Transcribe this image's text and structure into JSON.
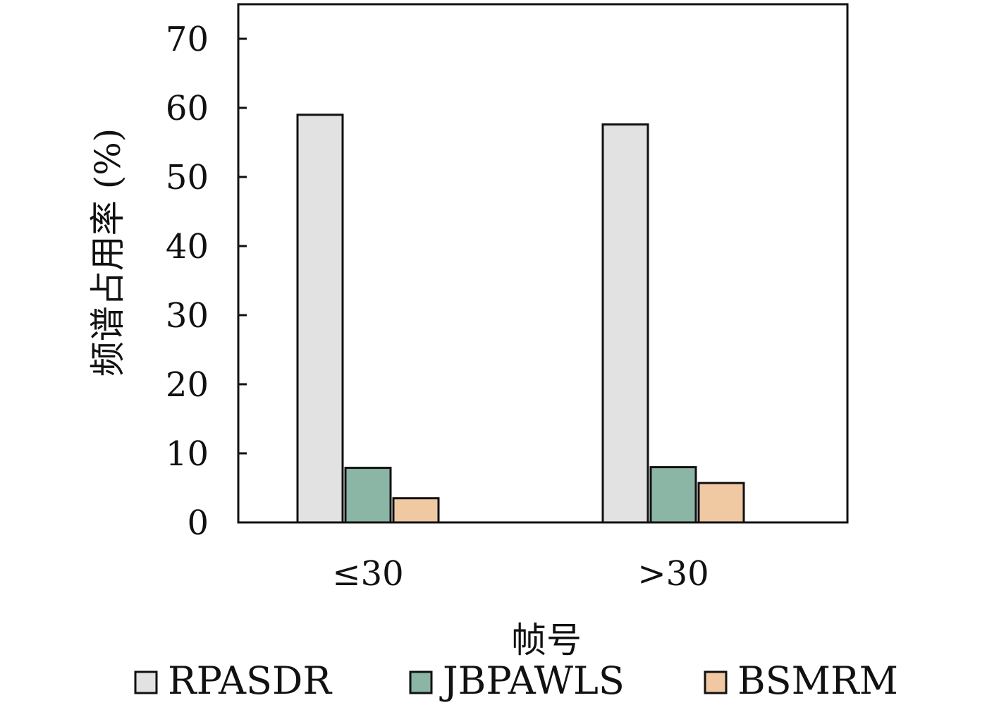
{
  "chart_data": {
    "type": "bar",
    "categories": [
      "≤30",
      ">30"
    ],
    "series": [
      {
        "name": "RPASDR",
        "color": "#e2e2e2",
        "values": [
          59.0,
          57.6
        ]
      },
      {
        "name": "JBPAWLS",
        "color": "#8bb5a5",
        "values": [
          7.9,
          8.0
        ]
      },
      {
        "name": "BSMRM",
        "color": "#f0c8a2",
        "values": [
          3.5,
          5.7
        ]
      }
    ],
    "xlabel": "帧号",
    "ylabel": "频谱占用率 (%)",
    "ylim": [
      0,
      75
    ],
    "yticks": [
      0,
      10,
      20,
      30,
      40,
      50,
      60,
      70
    ],
    "grid": false,
    "legend": "bottom"
  }
}
